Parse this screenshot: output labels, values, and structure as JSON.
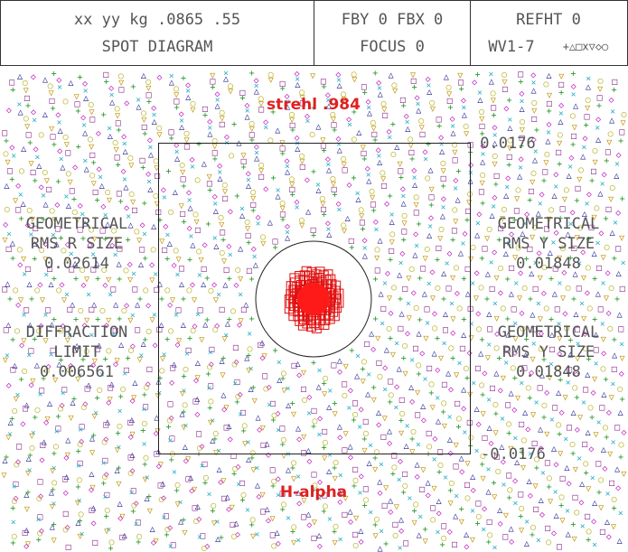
{
  "header": {
    "cells": [
      {
        "lines": [
          "xx yy kg .0865 .55",
          "SPOT DIAGRAM"
        ]
      },
      {
        "lines": [
          "FBY 0 FBX 0",
          "FOCUS 0"
        ]
      },
      {
        "lines": [
          "REFHT 0",
          "WV1-7"
        ],
        "symbols": "+△□x▽◇○"
      }
    ]
  },
  "annotations": {
    "strehl": "strehl .984",
    "wavelength": "H-alpha"
  },
  "scale": {
    "top": "0.0176",
    "bottom": "-0.0176"
  },
  "left_labels": [
    {
      "lines": [
        "GEOMETRICAL",
        "RMS R SIZE",
        "0.02614"
      ]
    },
    {
      "lines": [
        "DIFFRACTION",
        "LIMIT",
        "0.006561"
      ]
    }
  ],
  "right_labels": [
    {
      "lines": [
        "GEOMETRICAL",
        "RMS Y SIZE",
        "0.01848"
      ]
    },
    {
      "lines": [
        "GEOMETRICAL",
        "RMS Y SIZE",
        "0.01848"
      ]
    }
  ]
}
